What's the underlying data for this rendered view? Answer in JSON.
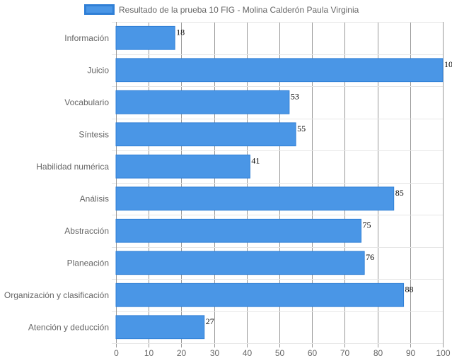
{
  "chart_data": {
    "type": "bar",
    "orientation": "horizontal",
    "categories": [
      "Información",
      "Juicio",
      "Vocabulario",
      "Síntesis",
      "Habilidad numérica",
      "Análisis",
      "Abstracción",
      "Planeación",
      "Organización y clasificación",
      "Atención y deducción"
    ],
    "series": [
      {
        "name": "Resultado de la prueba 10 FIG - Molina Calderón Paula Virginia",
        "values": [
          18,
          100,
          53,
          55,
          41,
          85,
          75,
          76,
          88,
          27
        ],
        "color": "#4a96e6",
        "border_color": "#2f7fd6"
      }
    ],
    "xlim": [
      0,
      100
    ],
    "x_ticks": [
      0,
      10,
      20,
      30,
      40,
      50,
      60,
      70,
      80,
      90,
      100
    ],
    "grid": true,
    "legend": "top-left",
    "show_data_labels": true
  }
}
